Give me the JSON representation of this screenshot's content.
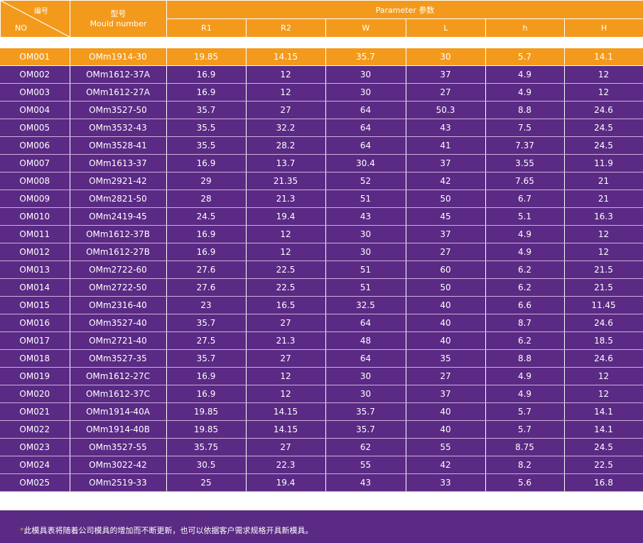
{
  "header": {
    "no_cn": "编号",
    "no_en": "NO",
    "model_cn": "型号",
    "model_en": "Mould number",
    "param_group": "Parameter  参数",
    "params": [
      "R1",
      "R2",
      "W",
      "L",
      "h",
      "H"
    ]
  },
  "rows": [
    [
      "OM001",
      "OMm1914-30",
      "19.85",
      "14.15",
      "35.7",
      "30",
      "5.7",
      "14.1"
    ],
    [
      "OM002",
      "OMm1612-37A",
      "16.9",
      "12",
      "30",
      "37",
      "4.9",
      "12"
    ],
    [
      "OM003",
      "OMm1612-27A",
      "16.9",
      "12",
      "30",
      "27",
      "4.9",
      "12"
    ],
    [
      "OM004",
      "OMm3527-50",
      "35.7",
      "27",
      "64",
      "50.3",
      "8.8",
      "24.6"
    ],
    [
      "OM005",
      "OMm3532-43",
      "35.5",
      "32.2",
      "64",
      "43",
      "7.5",
      "24.5"
    ],
    [
      "OM006",
      "OMm3528-41",
      "35.5",
      "28.2",
      "64",
      "41",
      "7.37",
      "24.5"
    ],
    [
      "OM007",
      "OMm1613-37",
      "16.9",
      "13.7",
      "30.4",
      "37",
      "3.55",
      "11.9"
    ],
    [
      "OM008",
      "OMm2921-42",
      "29",
      "21.35",
      "52",
      "42",
      "7.65",
      "21"
    ],
    [
      "OM009",
      "OMm2821-50",
      "28",
      "21.3",
      "51",
      "50",
      "6.7",
      "21"
    ],
    [
      "OM010",
      "OMm2419-45",
      "24.5",
      "19.4",
      "43",
      "45",
      "5.1",
      "16.3"
    ],
    [
      "OM011",
      "OMm1612-37B",
      "16.9",
      "12",
      "30",
      "37",
      "4.9",
      "12"
    ],
    [
      "OM012",
      "OMm1612-27B",
      "16.9",
      "12",
      "30",
      "27",
      "4.9",
      "12"
    ],
    [
      "OM013",
      "OMm2722-60",
      "27.6",
      "22.5",
      "51",
      "60",
      "6.2",
      "21.5"
    ],
    [
      "OM014",
      "OMm2722-50",
      "27.6",
      "22.5",
      "51",
      "50",
      "6.2",
      "21.5"
    ],
    [
      "OM015",
      "OMm2316-40",
      "23",
      "16.5",
      "32.5",
      "40",
      "6.6",
      "11.45"
    ],
    [
      "OM016",
      "OMm3527-40",
      "35.7",
      "27",
      "64",
      "40",
      "8.7",
      "24.6"
    ],
    [
      "OM017",
      "OMm2721-40",
      "27.5",
      "21.3",
      "48",
      "40",
      "6.2",
      "18.5"
    ],
    [
      "OM018",
      "OMm3527-35",
      "35.7",
      "27",
      "64",
      "35",
      "8.8",
      "24.6"
    ],
    [
      "OM019",
      "OMm1612-27C",
      "16.9",
      "12",
      "30",
      "27",
      "4.9",
      "12"
    ],
    [
      "OM020",
      "OMm1612-37C",
      "16.9",
      "12",
      "30",
      "37",
      "4.9",
      "12"
    ],
    [
      "OM021",
      "OMm1914-40A",
      "19.85",
      "14.15",
      "35.7",
      "40",
      "5.7",
      "14.1"
    ],
    [
      "OM022",
      "OMm1914-40B",
      "19.85",
      "14.15",
      "35.7",
      "40",
      "5.7",
      "14.1"
    ],
    [
      "OM023",
      "OMm3527-55",
      "35.75",
      "27",
      "62",
      "55",
      "8.75",
      "24.5"
    ],
    [
      "OM024",
      "OMm3022-42",
      "30.5",
      "22.3",
      "55",
      "42",
      "8.2",
      "22.5"
    ],
    [
      "OM025",
      "OMm2519-33",
      "25",
      "19.4",
      "43",
      "33",
      "5.6",
      "16.8"
    ]
  ],
  "footer": {
    "star": "*",
    "note": "此模具表将随着公司模具的增加而不断更新，也可以依据客户需求规格开具新模具。"
  },
  "colors": {
    "orange": "#f39a1c",
    "purple": "#5a2a84"
  }
}
